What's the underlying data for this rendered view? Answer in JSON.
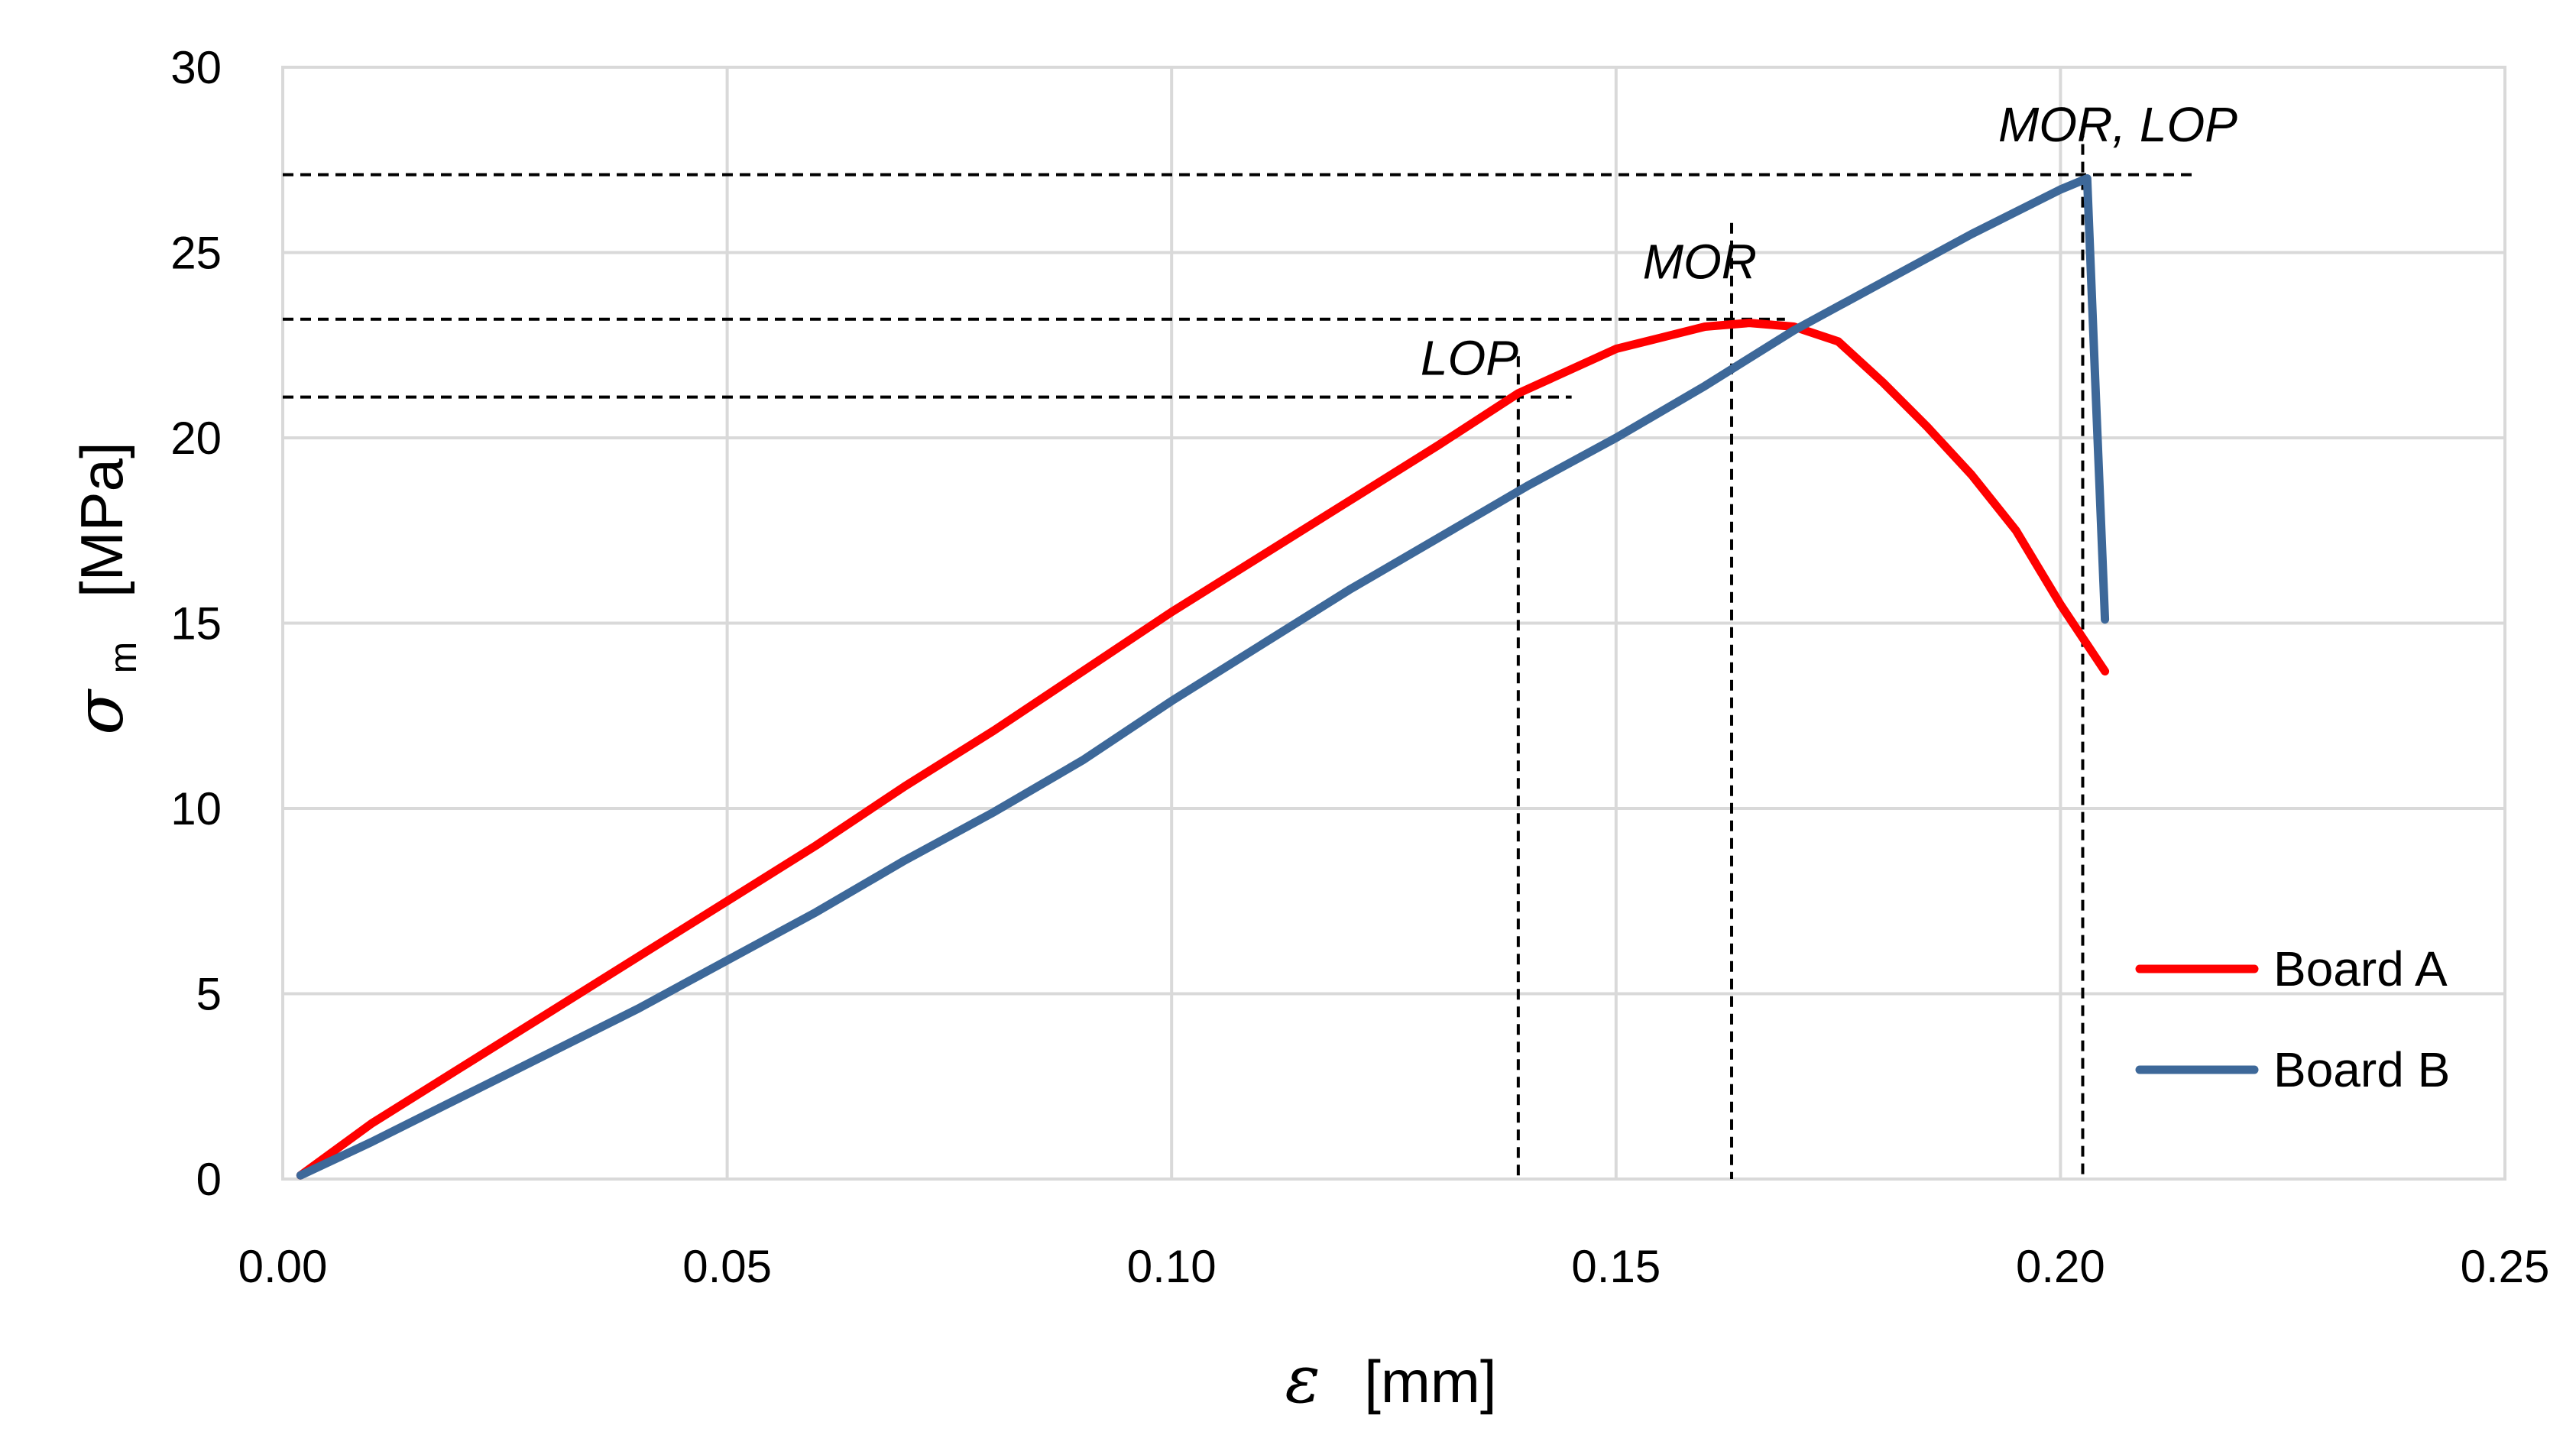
{
  "chart_data": {
    "type": "line",
    "title": "",
    "xlabel": {
      "symbol": "ε",
      "unit": "[mm]"
    },
    "ylabel": {
      "symbol": "σ",
      "subscript": "m",
      "unit": "[MPa]"
    },
    "xlim": [
      0,
      0.25
    ],
    "ylim": [
      0,
      30
    ],
    "x_ticks": [
      0,
      0.05,
      0.1,
      0.15,
      0.2,
      0.25
    ],
    "x_tick_labels": [
      "0.00",
      "0.05",
      "0.10",
      "0.15",
      "0.20",
      "0.25"
    ],
    "y_ticks": [
      0,
      5,
      10,
      15,
      20,
      25,
      30
    ],
    "y_tick_labels": [
      "0",
      "5",
      "10",
      "15",
      "20",
      "25",
      "30"
    ],
    "grid": true,
    "legend_position": "bottom-right",
    "series": [
      {
        "name": "Board A",
        "color": "#FF0000",
        "x": [
          0.002,
          0.01,
          0.02,
          0.03,
          0.04,
          0.05,
          0.06,
          0.07,
          0.08,
          0.09,
          0.1,
          0.11,
          0.12,
          0.13,
          0.139,
          0.15,
          0.155,
          0.16,
          0.165,
          0.17,
          0.175,
          0.18,
          0.185,
          0.19,
          0.195,
          0.2,
          0.205
        ],
        "y": [
          0.1,
          1.5,
          3.0,
          4.5,
          6.0,
          7.5,
          9.0,
          10.6,
          12.1,
          13.7,
          15.3,
          16.8,
          18.3,
          19.8,
          21.2,
          22.4,
          22.7,
          23.0,
          23.1,
          23.0,
          22.6,
          21.5,
          20.3,
          19.0,
          17.5,
          15.5,
          13.7
        ]
      },
      {
        "name": "Board B",
        "color": "#3D6899",
        "x": [
          0.002,
          0.01,
          0.02,
          0.03,
          0.04,
          0.05,
          0.06,
          0.07,
          0.08,
          0.09,
          0.1,
          0.11,
          0.12,
          0.13,
          0.14,
          0.15,
          0.16,
          0.17,
          0.18,
          0.19,
          0.2,
          0.203,
          0.204,
          0.205
        ],
        "y": [
          0.1,
          1.0,
          2.2,
          3.4,
          4.6,
          5.9,
          7.2,
          8.6,
          9.9,
          11.3,
          12.9,
          14.4,
          15.9,
          17.3,
          18.7,
          20.0,
          21.4,
          22.9,
          24.2,
          25.5,
          26.7,
          27.0,
          21.0,
          15.1
        ]
      }
    ],
    "reference_lines": {
      "horizontal": [
        {
          "y": 21.1,
          "x_end": 0.145
        },
        {
          "y": 23.2,
          "x_end": 0.169
        },
        {
          "y": 27.1,
          "x_end": 0.215
        }
      ],
      "vertical": [
        {
          "x": 0.139,
          "y_end": 22.2
        },
        {
          "x": 0.163,
          "y_end": 25.8
        },
        {
          "x": 0.2025,
          "y_end": 28.4
        }
      ]
    },
    "annotations": [
      {
        "text": "LOP",
        "x": 0.128,
        "y": 21.7
      },
      {
        "text": "MOR",
        "x": 0.153,
        "y": 24.3
      },
      {
        "text": "MOR, LOP",
        "x": 0.193,
        "y": 28.0
      }
    ]
  }
}
